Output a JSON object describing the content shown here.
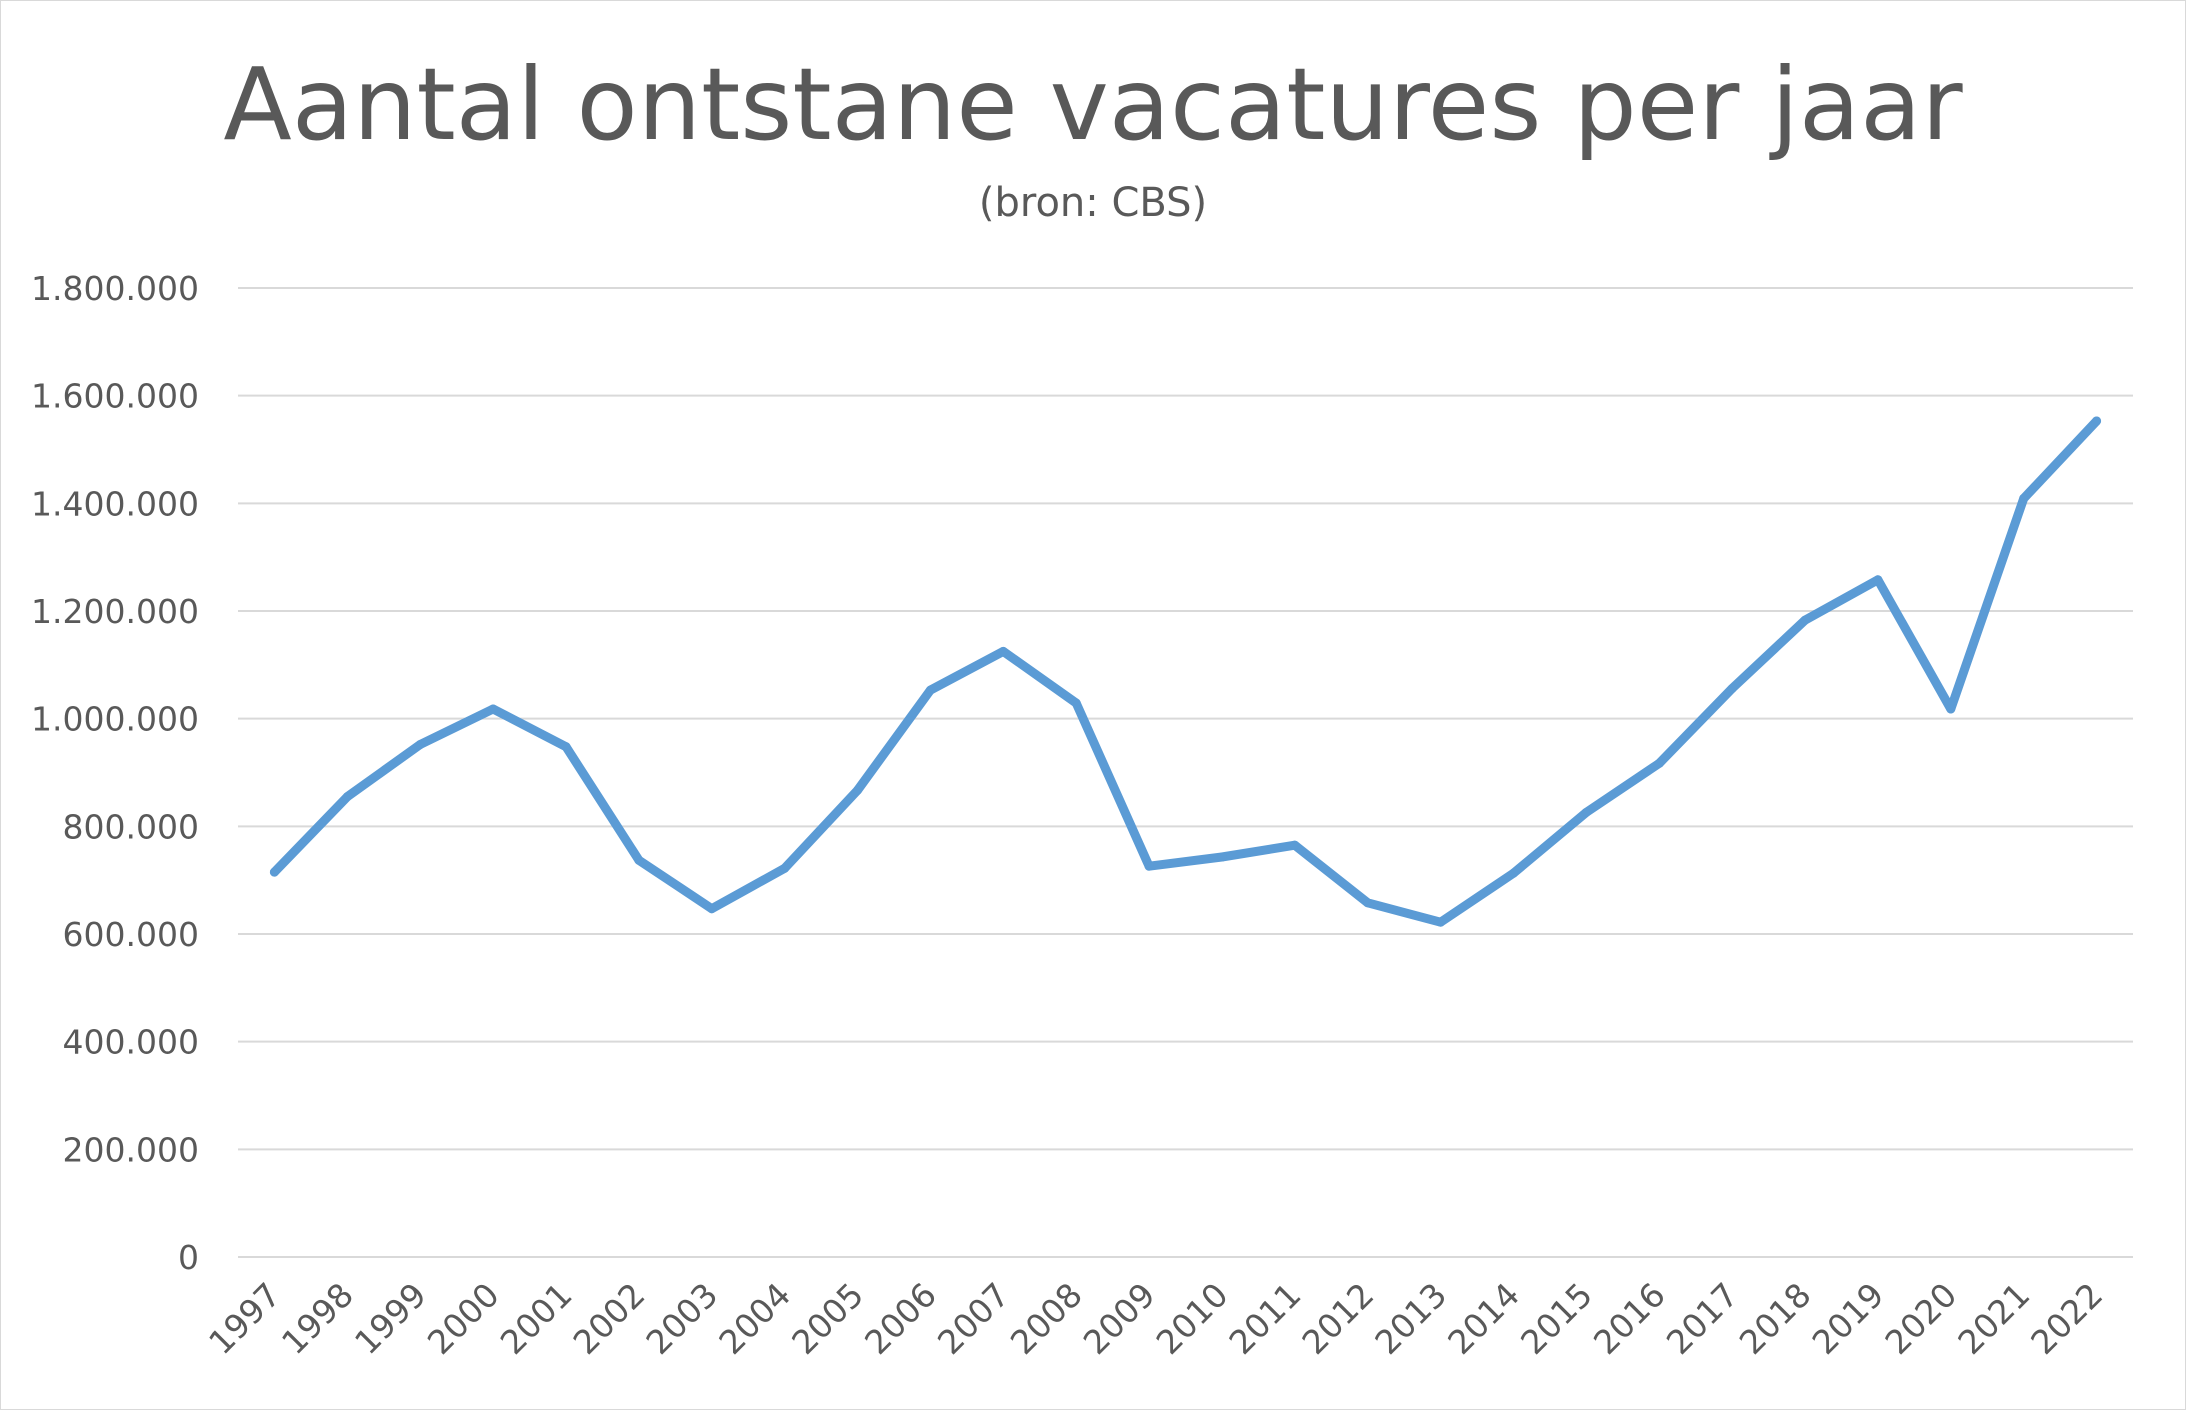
{
  "chart_data": {
    "type": "line",
    "title": "Aantal ontstane vacatures per jaar",
    "subtitle": "(bron: CBS)",
    "xlabel": "",
    "ylabel": "",
    "x": [
      "1997",
      "1998",
      "1999",
      "2000",
      "2001",
      "2002",
      "2003",
      "2004",
      "2005",
      "2006",
      "2007",
      "2008",
      "2009",
      "2010",
      "2011",
      "2012",
      "2013",
      "2014",
      "2015",
      "2016",
      "2017",
      "2018",
      "2019",
      "2020",
      "2021",
      "2022"
    ],
    "series": [
      {
        "values": [
          715000,
          855000,
          952000,
          1018000,
          948000,
          737000,
          647000,
          722000,
          867000,
          1053000,
          1125000,
          1029000,
          726000,
          743000,
          765000,
          658000,
          622000,
          713000,
          826000,
          917000,
          1056000,
          1183000,
          1258000,
          1018000,
          1409000,
          1553000
        ],
        "color": "#5b9bd5"
      }
    ],
    "ylim": [
      0,
      1800000
    ],
    "yticks": [
      {
        "value": 0,
        "label": "0"
      },
      {
        "value": 200000,
        "label": "200.000"
      },
      {
        "value": 400000,
        "label": "400.000"
      },
      {
        "value": 600000,
        "label": "600.000"
      },
      {
        "value": 800000,
        "label": "800.000"
      },
      {
        "value": 1000000,
        "label": "1.000.000"
      },
      {
        "value": 1200000,
        "label": "1.200.000"
      },
      {
        "value": 1400000,
        "label": "1.400.000"
      },
      {
        "value": 1600000,
        "label": "1.600.000"
      },
      {
        "value": 1800000,
        "label": "1.800.000"
      }
    ],
    "grid": true,
    "legend": "none",
    "gridline_color": "#d9d9d9",
    "text_color": "#595959"
  }
}
